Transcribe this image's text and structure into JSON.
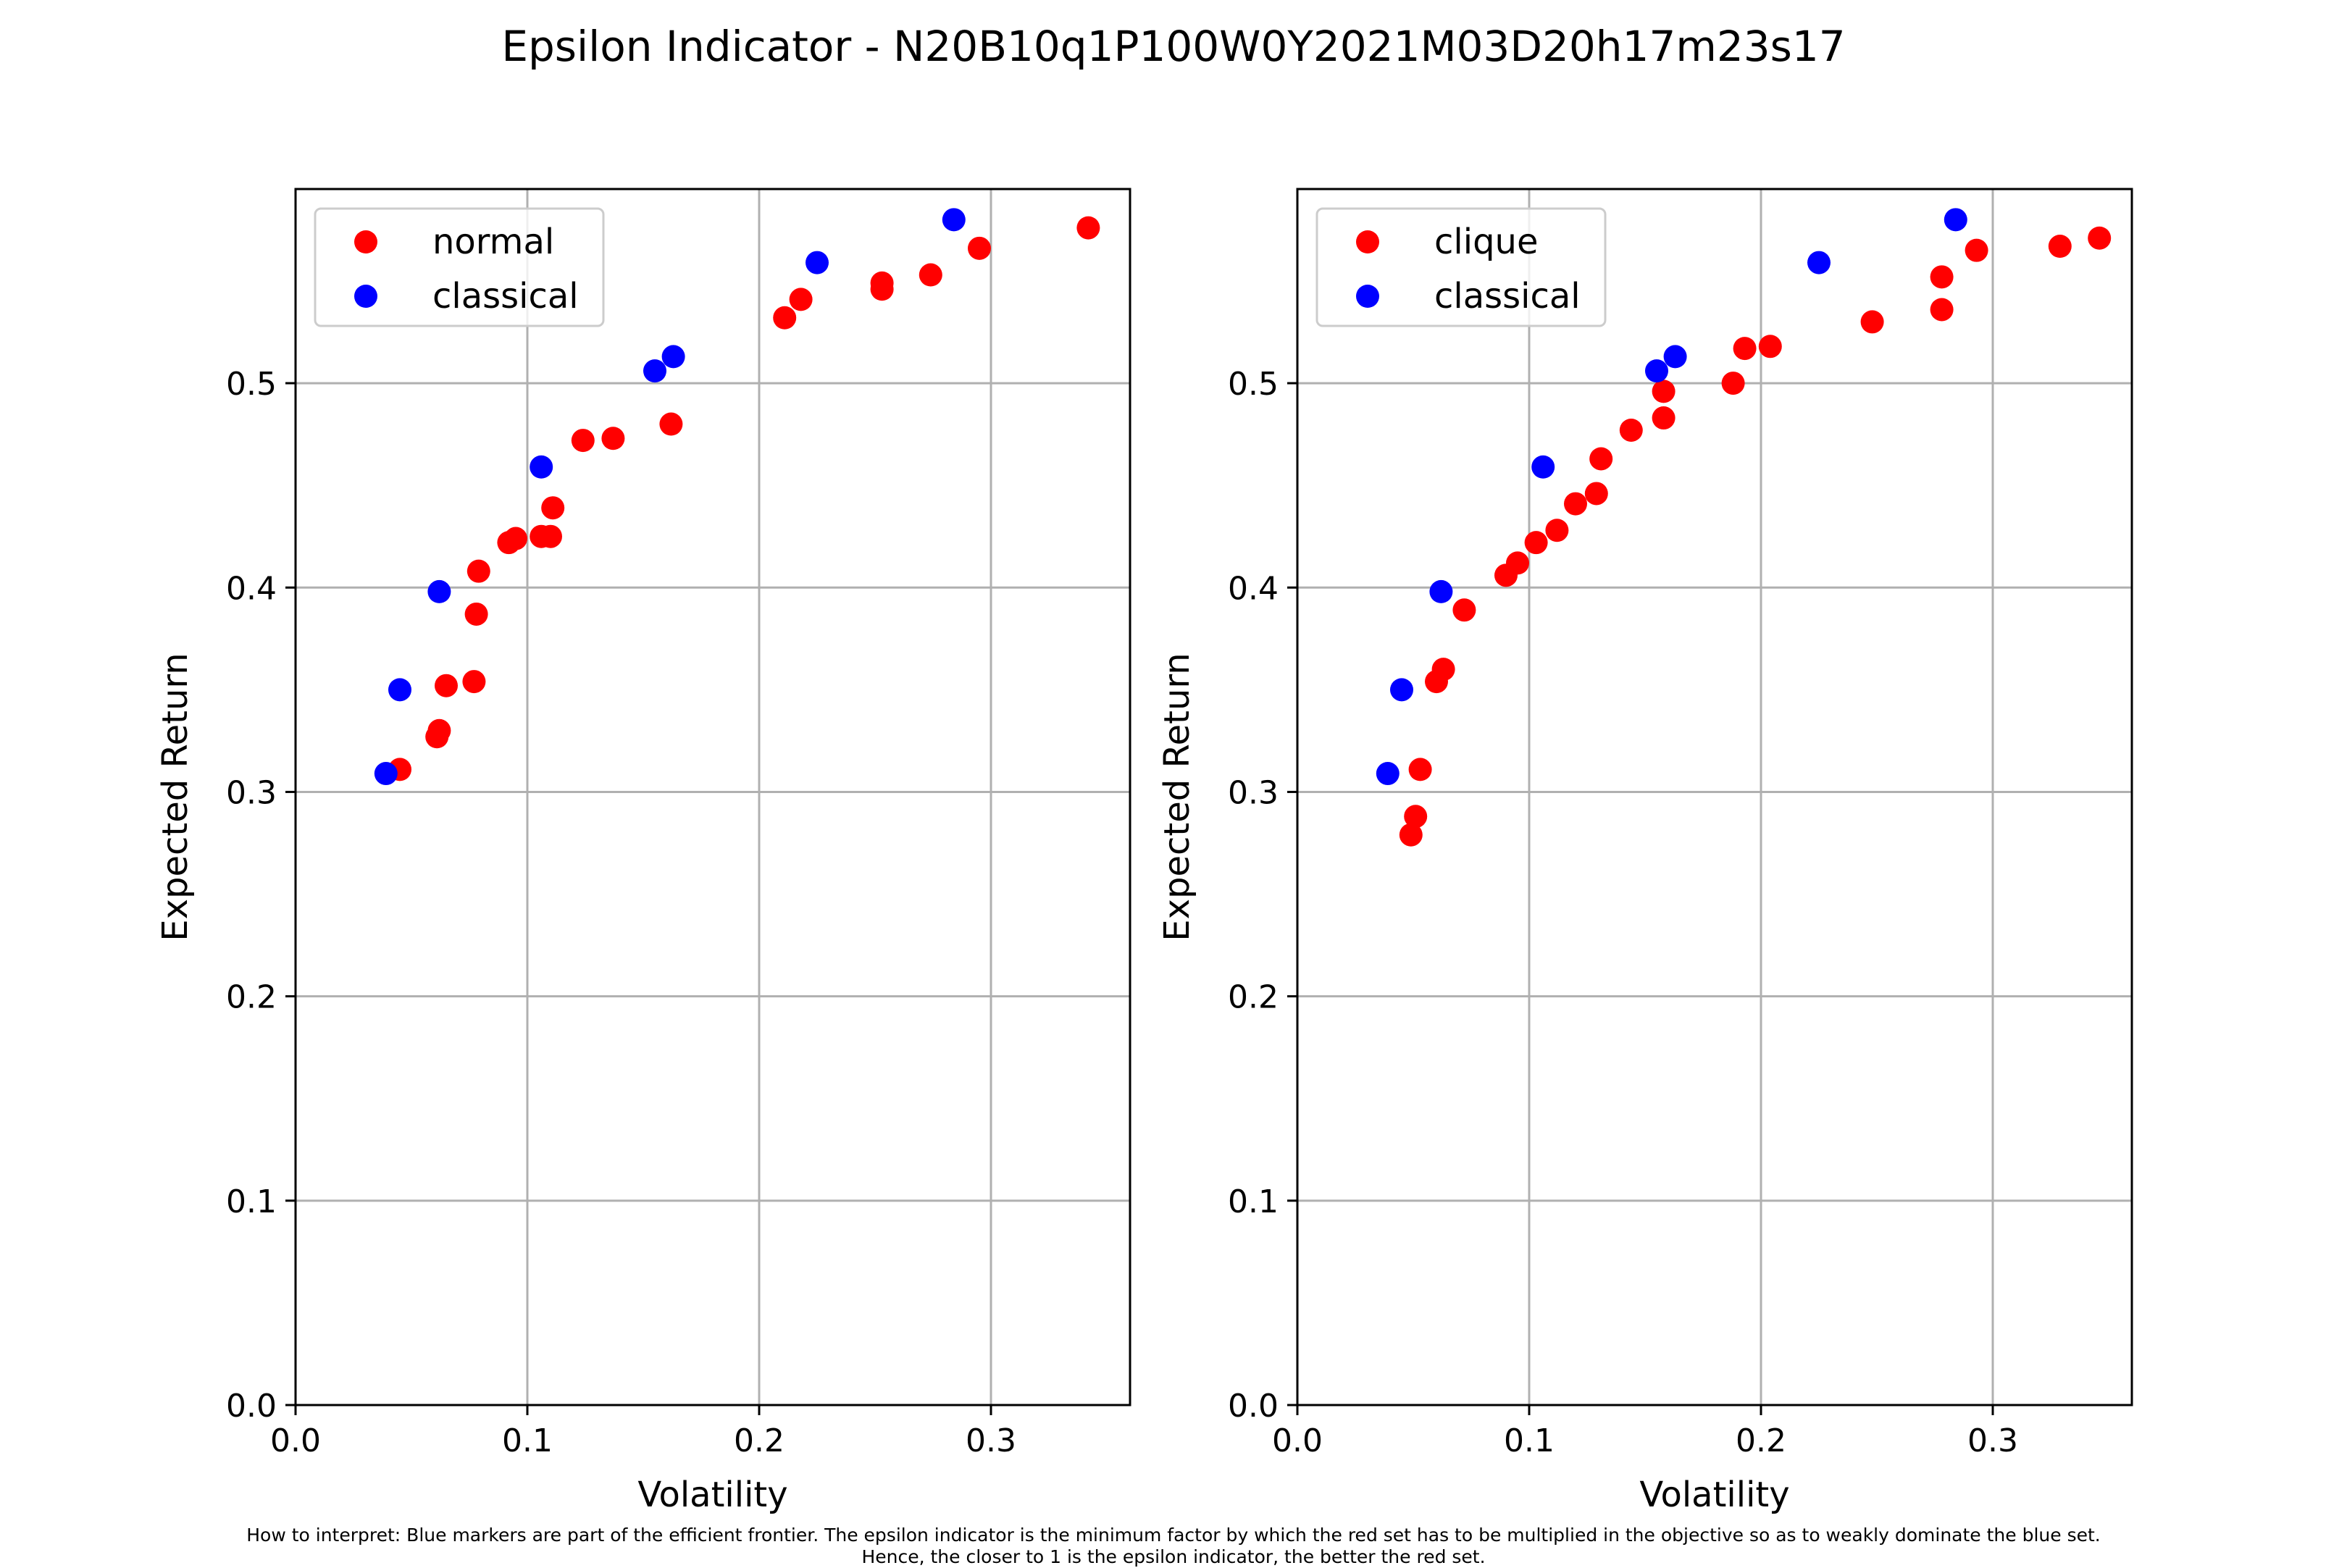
{
  "title": "Epsilon Indicator - N20B10q1P100W0Y2021M03D20h17m23s17",
  "footnote": {
    "line1": "How to interpret: Blue markers are part of the efficient frontier. The epsilon indicator is the minimum factor by which the red set has to be multiplied in the objective so as to weakly dominate the blue set.",
    "line2": "Hence, the closer to 1 is the epsilon indicator, the better the red set."
  },
  "colors": {
    "red": "#ff0000",
    "blue": "#0000ff",
    "grid": "#b0b0b0"
  },
  "chart_data": [
    {
      "type": "scatter",
      "xlabel": "Volatility",
      "ylabel": "Expected Return",
      "xlim": [
        0.0,
        0.36
      ],
      "ylim": [
        0.0,
        0.595
      ],
      "xticks": [
        0.0,
        0.1,
        0.2,
        0.3
      ],
      "xtick_labels": [
        "0.0",
        "0.1",
        "0.2",
        "0.3"
      ],
      "yticks": [
        0.0,
        0.1,
        0.2,
        0.3,
        0.4,
        0.5
      ],
      "ytick_labels": [
        "0.0",
        "0.1",
        "0.2",
        "0.3",
        "0.4",
        "0.5"
      ],
      "grid": true,
      "legend_position": "top-left",
      "series": [
        {
          "name": "normal",
          "color": "#ff0000",
          "points": [
            [
              0.045,
              0.311
            ],
            [
              0.061,
              0.327
            ],
            [
              0.062,
              0.33
            ],
            [
              0.065,
              0.352
            ],
            [
              0.077,
              0.354
            ],
            [
              0.078,
              0.387
            ],
            [
              0.079,
              0.408
            ],
            [
              0.092,
              0.422
            ],
            [
              0.095,
              0.424
            ],
            [
              0.106,
              0.425
            ],
            [
              0.11,
              0.425
            ],
            [
              0.111,
              0.439
            ],
            [
              0.124,
              0.472
            ],
            [
              0.137,
              0.473
            ],
            [
              0.162,
              0.48
            ],
            [
              0.211,
              0.532
            ],
            [
              0.218,
              0.541
            ],
            [
              0.253,
              0.546
            ],
            [
              0.253,
              0.549
            ],
            [
              0.274,
              0.553
            ],
            [
              0.295,
              0.566
            ],
            [
              0.342,
              0.576
            ]
          ]
        },
        {
          "name": "classical",
          "color": "#0000ff",
          "points": [
            [
              0.039,
              0.309
            ],
            [
              0.045,
              0.35
            ],
            [
              0.062,
              0.398
            ],
            [
              0.106,
              0.459
            ],
            [
              0.155,
              0.506
            ],
            [
              0.163,
              0.513
            ],
            [
              0.225,
              0.559
            ],
            [
              0.284,
              0.58
            ]
          ]
        }
      ]
    },
    {
      "type": "scatter",
      "xlabel": "Volatility",
      "ylabel": "Expected Return",
      "xlim": [
        0.0,
        0.36
      ],
      "ylim": [
        0.0,
        0.595
      ],
      "xticks": [
        0.0,
        0.1,
        0.2,
        0.3
      ],
      "xtick_labels": [
        "0.0",
        "0.1",
        "0.2",
        "0.3"
      ],
      "yticks": [
        0.0,
        0.1,
        0.2,
        0.3,
        0.4,
        0.5
      ],
      "ytick_labels": [
        "0.0",
        "0.1",
        "0.2",
        "0.3",
        "0.4",
        "0.5"
      ],
      "grid": true,
      "legend_position": "top-left",
      "series": [
        {
          "name": "clique",
          "color": "#ff0000",
          "points": [
            [
              0.049,
              0.279
            ],
            [
              0.051,
              0.288
            ],
            [
              0.053,
              0.311
            ],
            [
              0.06,
              0.354
            ],
            [
              0.063,
              0.36
            ],
            [
              0.072,
              0.389
            ],
            [
              0.09,
              0.406
            ],
            [
              0.095,
              0.412
            ],
            [
              0.103,
              0.422
            ],
            [
              0.112,
              0.428
            ],
            [
              0.12,
              0.441
            ],
            [
              0.129,
              0.446
            ],
            [
              0.131,
              0.463
            ],
            [
              0.144,
              0.477
            ],
            [
              0.158,
              0.483
            ],
            [
              0.158,
              0.496
            ],
            [
              0.188,
              0.5
            ],
            [
              0.193,
              0.517
            ],
            [
              0.204,
              0.518
            ],
            [
              0.248,
              0.53
            ],
            [
              0.278,
              0.536
            ],
            [
              0.278,
              0.552
            ],
            [
              0.293,
              0.565
            ],
            [
              0.329,
              0.567
            ],
            [
              0.346,
              0.571
            ]
          ]
        },
        {
          "name": "classical",
          "color": "#0000ff",
          "points": [
            [
              0.039,
              0.309
            ],
            [
              0.045,
              0.35
            ],
            [
              0.062,
              0.398
            ],
            [
              0.106,
              0.459
            ],
            [
              0.155,
              0.506
            ],
            [
              0.163,
              0.513
            ],
            [
              0.225,
              0.559
            ],
            [
              0.284,
              0.58
            ]
          ]
        }
      ]
    }
  ]
}
